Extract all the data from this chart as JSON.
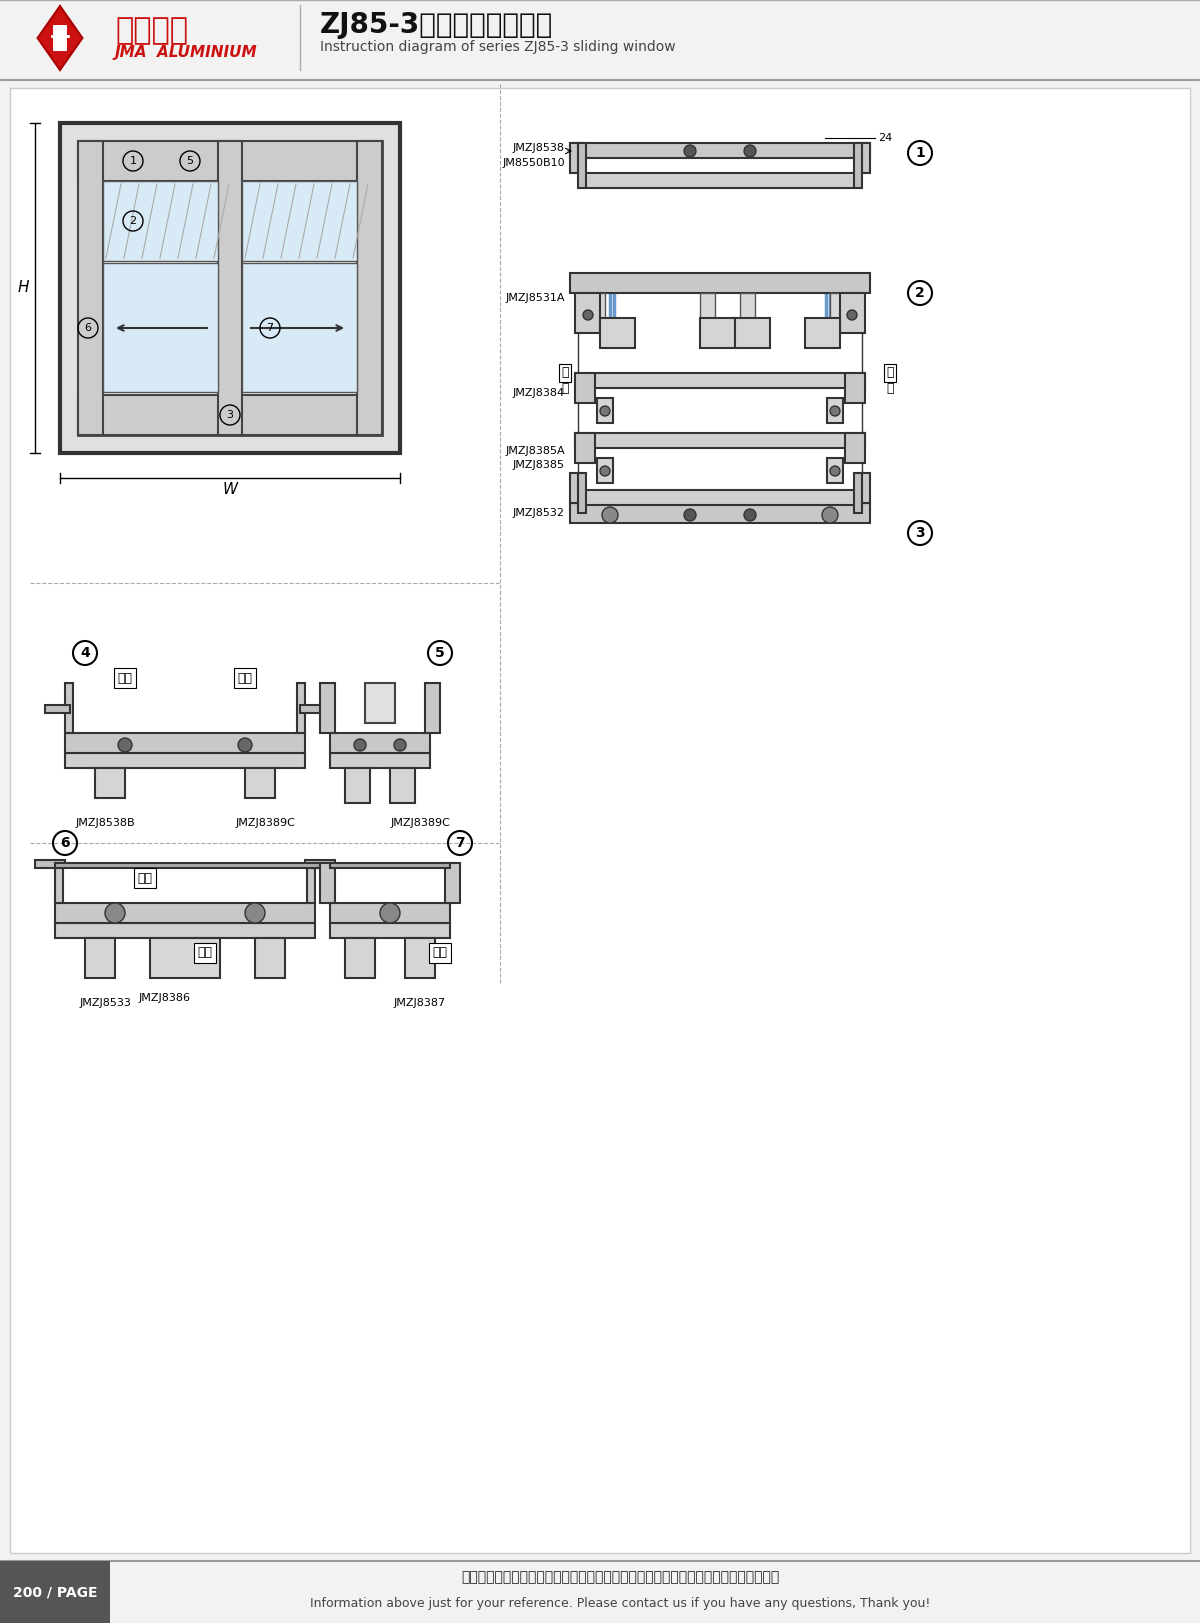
{
  "title_cn": "ZJ85-3系列推拉窗结构图",
  "title_en": "Instruction diagram of series ZJ85-3 sliding window",
  "company_cn": "坚美铝业",
  "company_sub": "JMA ALUMINIUM",
  "page": "200 / PAGE",
  "footer_cn": "图中所示型材截面、装配、编号、尺寸及重量仅供参考。如有疑问，请向本公司查询。",
  "footer_en": "Information above just for your reference. Please contact us if you have any questions, Thank you!",
  "bg_color": "#f0f0f0",
  "white": "#ffffff",
  "black": "#000000",
  "red": "#cc0000",
  "dark_gray": "#555555",
  "mid_gray": "#888888",
  "light_gray": "#cccccc"
}
